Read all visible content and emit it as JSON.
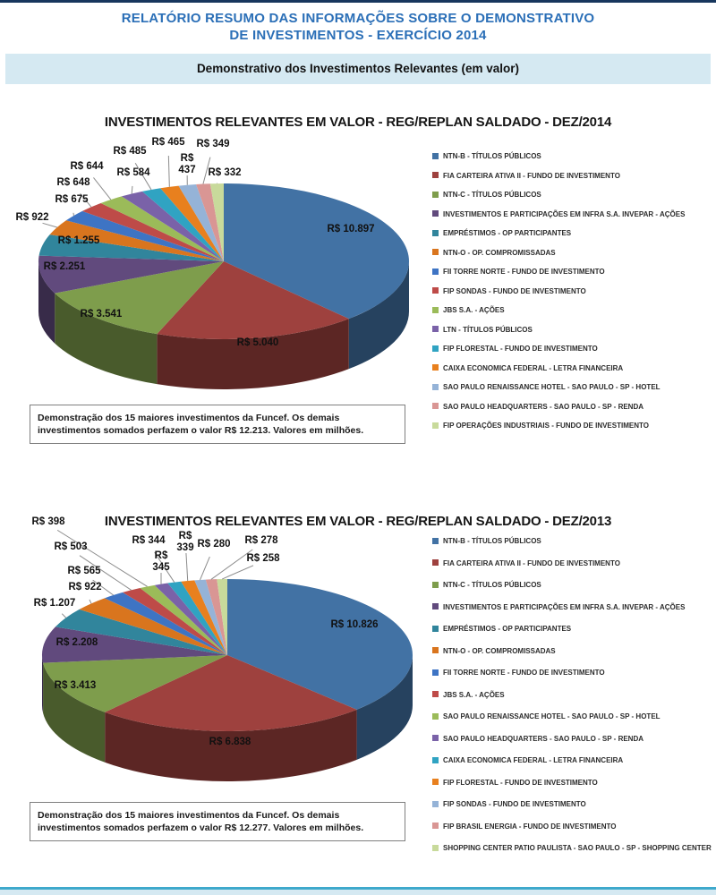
{
  "page": {
    "header_line1": "RELATÓRIO RESUMO DAS INFORMAÇÕES SOBRE O DEMONSTRATIVO",
    "header_line2": "DE INVESTIMENTOS - EXERCÍCIO 2014",
    "banner": "Demonstrativo dos Investimentos Relevantes (em valor)",
    "colors": {
      "top_bar": "#17365D",
      "header_text": "#2B6FB7",
      "banner_bg": "#D5E9F2",
      "footer_line": "#3FA9CC"
    }
  },
  "chart_data": [
    {
      "type": "pie",
      "title": "INVESTIMENTOS RELEVANTES EM VALOR - REG/REPLAN SALDADO - DEZ/2014",
      "legend_position": "right",
      "note": "Demonstração dos 15 maiores investimentos da Funcef. Os demais investimentos somados perfazem o valor R$ 12.213.  Valores em milhões.",
      "units": "R$ milhões",
      "slices": [
        {
          "name": "NTN-B - TÍTULOS PÚBLICOS",
          "value": 10897,
          "label": "R$ 10.897",
          "color": "#4272A4"
        },
        {
          "name": "FIA CARTEIRA ATIVA II - FUNDO DE INVESTIMENTO",
          "value": 5040,
          "label": "R$ 5.040",
          "color": "#9E413E"
        },
        {
          "name": "NTN-C - TÍTULOS PÚBLICOS",
          "value": 3541,
          "label": "R$ 3.541",
          "color": "#7E9D4C"
        },
        {
          "name": "INVESTIMENTOS  E PARTICIPAÇÕES EM INFRA S.A. INVEPAR - AÇÕES",
          "value": 2251,
          "label": "R$ 2.251",
          "color": "#614A7D"
        },
        {
          "name": "EMPRÉSTIMOS - OP PARTICIPANTES",
          "value": 1255,
          "label": "R$ 1.255",
          "color": "#31859C"
        },
        {
          "name": "NTN-O - OP. COMPROMISSADAS",
          "value": 922,
          "label": "R$ 922",
          "color": "#D9751E"
        },
        {
          "name": "FII TORRE NORTE - FUNDO DE INVESTIMENTO",
          "value": 675,
          "label": "R$ 675",
          "color": "#3E74C4"
        },
        {
          "name": "FIP SONDAS - FUNDO DE INVESTIMENTO",
          "value": 648,
          "label": "R$ 648",
          "color": "#BE4B48"
        },
        {
          "name": "JBS S.A. - AÇÕES",
          "value": 644,
          "label": "R$ 644",
          "color": "#9BBB59"
        },
        {
          "name": "LTN - TÍTULOS PÚBLICOS",
          "value": 584,
          "label": "R$ 584",
          "color": "#7A62A8"
        },
        {
          "name": "FIP FLORESTAL  - FUNDO DE INVESTIMENTO",
          "value": 485,
          "label": "R$ 485",
          "color": "#30A3C2"
        },
        {
          "name": "CAIXA ECONOMICA FEDERAL - LETRA FINANCEIRA",
          "value": 465,
          "label": "R$ 465",
          "color": "#E8801E"
        },
        {
          "name": "SAO PAULO RENAISSANCE HOTEL - SAO PAULO - SP - HOTEL",
          "value": 437,
          "label": "R$ 437",
          "color": "#95B3D7"
        },
        {
          "name": "SAO PAULO HEADQUARTERS - SAO PAULO - SP - RENDA",
          "value": 349,
          "label": "R$ 349",
          "color": "#D99694"
        },
        {
          "name": "FIP OPERAÇÕES INDUSTRIAIS - FUNDO DE INVESTIMENTO",
          "value": 332,
          "label": "R$ 332",
          "color": "#C8DA9B"
        }
      ]
    },
    {
      "type": "pie",
      "title": "INVESTIMENTOS RELEVANTES EM VALOR - REG/REPLAN SALDADO - DEZ/2013",
      "legend_position": "right",
      "note": "Demonstração dos 15 maiores investimentos da Funcef. Os demais investimentos somados perfazem o valor R$ 12.277.  Valores em milhões.",
      "units": "R$ milhões",
      "slices": [
        {
          "name": "NTN-B - TÍTULOS PÚBLICOS",
          "value": 10826,
          "label": "R$ 10.826",
          "color": "#4272A4"
        },
        {
          "name": "FIA CARTEIRA ATIVA II - FUNDO DE INVESTIMENTO",
          "value": 6838,
          "label": "R$ 6.838",
          "color": "#9E413E"
        },
        {
          "name": "NTN-C - TÍTULOS PÚBLICOS",
          "value": 3413,
          "label": "R$ 3.413",
          "color": "#7E9D4C"
        },
        {
          "name": "INVESTIMENTOS  E PARTICIPAÇÕES EM INFRA S.A. INVEPAR - AÇÕES",
          "value": 2208,
          "label": "R$ 2.208",
          "color": "#614A7D"
        },
        {
          "name": "EMPRÉSTIMOS - OP PARTICIPANTES",
          "value": 1207,
          "label": "R$ 1.207",
          "color": "#31859C"
        },
        {
          "name": "NTN-O - OP. COMPROMISSADAS",
          "value": 922,
          "label": "R$ 922",
          "color": "#D9751E"
        },
        {
          "name": "FII TORRE NORTE - FUNDO DE INVESTIMENTO",
          "value": 565,
          "label": "R$ 565",
          "color": "#3E74C4"
        },
        {
          "name": "JBS S.A. - AÇÕES",
          "value": 503,
          "label": "R$ 503",
          "color": "#BE4B48"
        },
        {
          "name": "SAO PAULO RENAISSANCE HOTEL - SAO PAULO - SP - HOTEL",
          "value": 398,
          "label": "R$ 398",
          "color": "#9BBB59"
        },
        {
          "name": "SAO PAULO HEADQUARTERS - SAO PAULO - SP - RENDA",
          "value": 345,
          "label": "R$ 345",
          "color": "#7A62A8"
        },
        {
          "name": "CAIXA ECONOMICA FEDERAL - LETRA FINANCEIRA",
          "value": 344,
          "label": "R$ 344",
          "color": "#30A3C2"
        },
        {
          "name": "FIP FLORESTAL  - FUNDO DE INVESTIMENTO",
          "value": 339,
          "label": "R$ 339",
          "color": "#E8801E"
        },
        {
          "name": "FIP SONDAS - FUNDO DE INVESTIMENTO",
          "value": 280,
          "label": "R$ 280",
          "color": "#95B3D7"
        },
        {
          "name": "FIP BRASIL ENERGIA - FUNDO DE INVESTIMENTO",
          "value": 278,
          "label": "R$ 278",
          "color": "#D99694"
        },
        {
          "name": "SHOPPING CENTER PATIO PAULISTA - SAO PAULO - SP - SHOPPING CENTER",
          "value": 258,
          "label": "R$ 258",
          "color": "#C8DA9B"
        }
      ]
    }
  ]
}
